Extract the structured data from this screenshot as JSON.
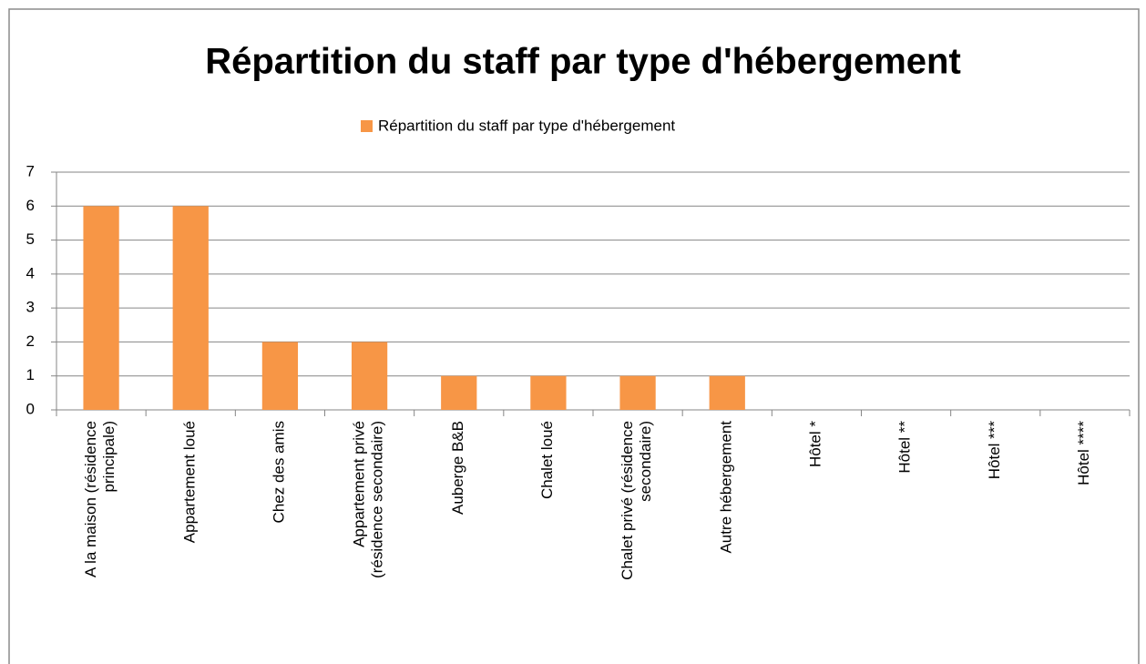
{
  "chart_data": {
    "type": "bar",
    "title": "Répartition du staff par type d'hébergement",
    "series": [
      {
        "name": "Répartition du staff par type d'hébergement",
        "color": "#f79646",
        "values": [
          6,
          6,
          2,
          2,
          1,
          1,
          1,
          1,
          0,
          0,
          0,
          0
        ]
      }
    ],
    "categories": [
      "A la maison (résidence principale)",
      "Appartement loué",
      "Chez des amis",
      "Appartement privé (résidence secondaire)",
      "Auberge B&B",
      "Chalet loué",
      "Chalet privé (résidence secondaire)",
      "Autre hébergement",
      "Hôtel *",
      "Hôtel **",
      "Hôtel ***",
      "Hôtel ****"
    ],
    "ylim": [
      0,
      7
    ],
    "yticks": [
      0,
      1,
      2,
      3,
      4,
      5,
      6,
      7
    ],
    "grid": true,
    "legend": "top"
  }
}
